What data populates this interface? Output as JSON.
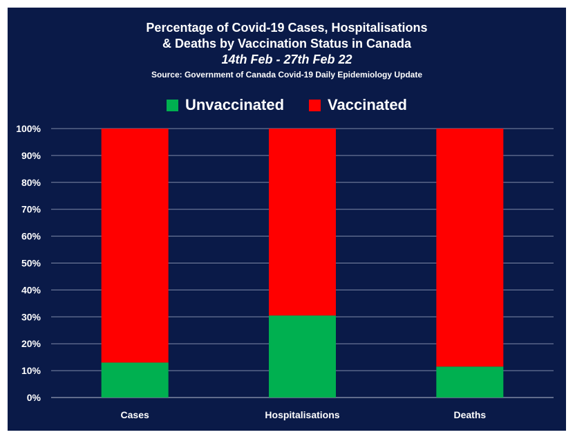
{
  "chart_data": {
    "type": "bar",
    "stacked": true,
    "title": "Percentage of Covid-19 Cases, Hospitalisations",
    "title_line2": "& Deaths by Vaccination Status in Canada",
    "subtitle": "14th Feb - 27th Feb 22",
    "source": "Source: Government of Canada  Covid-19 Daily Epidemiology Update",
    "categories": [
      "Cases",
      "Hospitalisations",
      "Deaths"
    ],
    "series": [
      {
        "name": "Unvaccinated",
        "color": "#00b050",
        "values": [
          13,
          30.5,
          11.5
        ]
      },
      {
        "name": "Vaccinated",
        "color": "#ff0000",
        "values": [
          87,
          69.5,
          88.5
        ]
      }
    ],
    "yticks": [
      "0%",
      "10%",
      "20%",
      "30%",
      "40%",
      "50%",
      "60%",
      "70%",
      "80%",
      "90%",
      "100%"
    ],
    "ylim": [
      0,
      100
    ],
    "grid": true,
    "legend_position": "top-center"
  }
}
